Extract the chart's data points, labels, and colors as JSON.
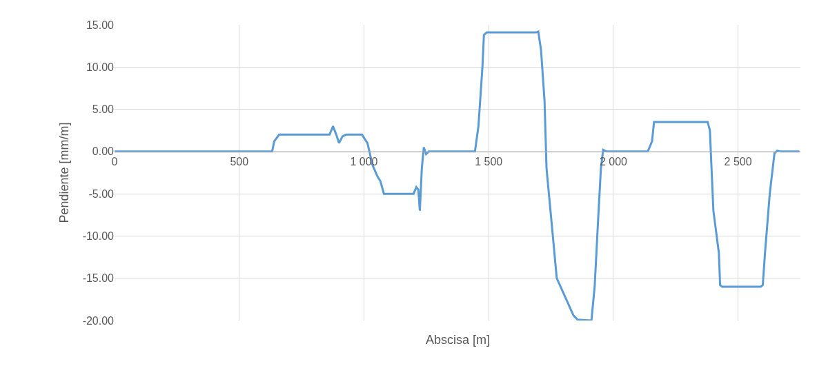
{
  "chart_data": {
    "type": "line",
    "xlabel": "Abscisa [m]",
    "ylabel": "Pendiente [mm/m]",
    "x": [
      0,
      632,
      640,
      660,
      840,
      862,
      876,
      889,
      900,
      914,
      928,
      992,
      1014,
      1022,
      1033,
      1055,
      1066,
      1080,
      1199,
      1210,
      1218,
      1224,
      1232,
      1240,
      1249,
      1260,
      1445,
      1459,
      1475,
      1481,
      1492,
      1691,
      1699,
      1710,
      1724,
      1732,
      1751,
      1773,
      1840,
      1856,
      1912,
      1925,
      1939,
      1950,
      1959,
      1972,
      2138,
      2155,
      2163,
      2378,
      2387,
      2401,
      2423,
      2428,
      2436,
      2591,
      2599,
      2608,
      2627,
      2646,
      2657,
      2669,
      2746
    ],
    "series": [
      {
        "color": "#5b9bd5",
        "values": [
          0,
          0,
          1.2,
          2.0,
          2.0,
          2.0,
          3.0,
          2.0,
          1.0,
          1.8,
          2.0,
          2.0,
          1.0,
          0,
          -1.5,
          -3.0,
          -3.5,
          -5.0,
          -5.0,
          -4.2,
          -4.5,
          -7.0,
          -2.0,
          0.5,
          -0.3,
          0,
          0,
          3.0,
          10.0,
          13.8,
          14.1,
          14.1,
          14.2,
          12.0,
          6.0,
          -2.0,
          -8.0,
          -15.0,
          -19.4,
          -19.9,
          -20.0,
          -16.0,
          -8.0,
          -2.0,
          0.2,
          0,
          0,
          1.2,
          3.5,
          3.5,
          2.5,
          -7.0,
          -12.0,
          -15.8,
          -16.0,
          -16.0,
          -15.8,
          -12.0,
          -5.0,
          -0.2,
          0.1,
          0,
          0
        ]
      }
    ],
    "xlim": [
      0,
      2750
    ],
    "xticks": [
      0,
      500,
      {
        "value": 1000,
        "label": "1 000"
      },
      {
        "value": 1500,
        "label": "1 500"
      },
      {
        "value": 2000,
        "label": "2 000"
      },
      {
        "value": 2500,
        "label": "2 500"
      }
    ],
    "ylim": [
      -20,
      15
    ],
    "yticks": [
      {
        "value": -20,
        "label": "-20.00"
      },
      {
        "value": -15,
        "label": "-15.00"
      },
      {
        "value": -10,
        "label": "-10.00"
      },
      {
        "value": -5,
        "label": "-5.00"
      },
      {
        "value": 0,
        "label": "0.00"
      },
      {
        "value": 5,
        "label": "5.00"
      },
      {
        "value": 10,
        "label": "10.00"
      },
      {
        "value": 15,
        "label": "15.00"
      }
    ],
    "grid": true,
    "marker": "none",
    "line_style": "solid"
  }
}
